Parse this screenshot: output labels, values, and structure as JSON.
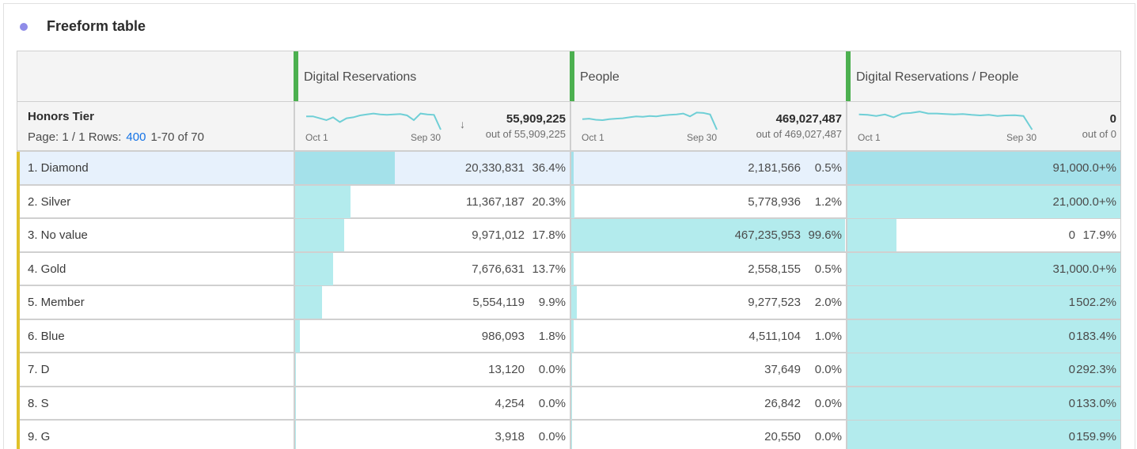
{
  "panel": {
    "title": "Freeform table",
    "accent_dot_color": "#8f8ce8"
  },
  "columns": [
    {
      "title": "Digital Reservations",
      "color": "#4cb050"
    },
    {
      "title": "People",
      "color": "#4cb050"
    },
    {
      "title": "Digital Reservations / People",
      "color": "#4cb050"
    }
  ],
  "dimension": {
    "title": "Honors Tier",
    "page_label": "Page: 1 / 1 Rows:",
    "rows_value": "400",
    "range_label": "1-70 of 70"
  },
  "summary": [
    {
      "spark_start": "Oct 1",
      "spark_end": "Sep 30",
      "total": "55,909,225",
      "out_of": "out of 55,909,225",
      "sort_icon": "sort-descending-icon",
      "sorted": true
    },
    {
      "spark_start": "Oct 1",
      "spark_end": "Sep 30",
      "total": "469,027,487",
      "out_of": "out of 469,027,487",
      "sorted": false
    },
    {
      "spark_start": "Oct 1",
      "spark_end": "Sep 30",
      "total": "0",
      "out_of": "out of 0",
      "sorted": false
    }
  ],
  "sparklines": [
    [
      0.7,
      0.7,
      0.6,
      0.5,
      0.65,
      0.4,
      0.6,
      0.65,
      0.75,
      0.8,
      0.85,
      0.8,
      0.78,
      0.8,
      0.82,
      0.75,
      0.5,
      0.85,
      0.8,
      0.78,
      0.0
    ],
    [
      0.55,
      0.58,
      0.52,
      0.5,
      0.55,
      0.58,
      0.6,
      0.65,
      0.7,
      0.68,
      0.72,
      0.7,
      0.75,
      0.78,
      0.8,
      0.85,
      0.7,
      0.9,
      0.88,
      0.8,
      0.0
    ],
    [
      0.8,
      0.78,
      0.72,
      0.8,
      0.65,
      0.85,
      0.88,
      0.95,
      0.85,
      0.85,
      0.82,
      0.8,
      0.82,
      0.78,
      0.75,
      0.78,
      0.72,
      0.75,
      0.76,
      0.72,
      0.0
    ]
  ],
  "rows": [
    {
      "label": "1.  Diamond",
      "selected": true,
      "c1": {
        "value": "20,330,831",
        "pct": "36.4%",
        "fill": 0.364
      },
      "c2": {
        "value": "2,181,566",
        "pct": "0.5%",
        "fill": 0.005
      },
      "c3": {
        "value": "9",
        "pct": "1,000.0+%",
        "fill": 1.0
      }
    },
    {
      "label": "2.  Silver",
      "selected": false,
      "c1": {
        "value": "11,367,187",
        "pct": "20.3%",
        "fill": 0.203
      },
      "c2": {
        "value": "5,778,936",
        "pct": "1.2%",
        "fill": 0.012
      },
      "c3": {
        "value": "2",
        "pct": "1,000.0+%",
        "fill": 1.0
      }
    },
    {
      "label": "3.  No value",
      "selected": false,
      "c1": {
        "value": "9,971,012",
        "pct": "17.8%",
        "fill": 0.178
      },
      "c2": {
        "value": "467,235,953",
        "pct": "99.6%",
        "fill": 0.996
      },
      "c3": {
        "value": "0",
        "pct": "17.9%",
        "fill": 0.179
      }
    },
    {
      "label": "4.  Gold",
      "selected": false,
      "c1": {
        "value": "7,676,631",
        "pct": "13.7%",
        "fill": 0.137
      },
      "c2": {
        "value": "2,558,155",
        "pct": "0.5%",
        "fill": 0.005
      },
      "c3": {
        "value": "3",
        "pct": "1,000.0+%",
        "fill": 1.0
      }
    },
    {
      "label": "5.  Member",
      "selected": false,
      "c1": {
        "value": "5,554,119",
        "pct": "9.9%",
        "fill": 0.099
      },
      "c2": {
        "value": "9,277,523",
        "pct": "2.0%",
        "fill": 0.02
      },
      "c3": {
        "value": "1",
        "pct": "502.2%",
        "fill": 1.0
      }
    },
    {
      "label": "6.  Blue",
      "selected": false,
      "c1": {
        "value": "986,093",
        "pct": "1.8%",
        "fill": 0.018
      },
      "c2": {
        "value": "4,511,104",
        "pct": "1.0%",
        "fill": 0.01
      },
      "c3": {
        "value": "0",
        "pct": "183.4%",
        "fill": 1.0
      }
    },
    {
      "label": "7.  D",
      "selected": false,
      "c1": {
        "value": "13,120",
        "pct": "0.0%",
        "fill": 0.0
      },
      "c2": {
        "value": "37,649",
        "pct": "0.0%",
        "fill": 0.0
      },
      "c3": {
        "value": "0",
        "pct": "292.3%",
        "fill": 1.0
      }
    },
    {
      "label": "8.  S",
      "selected": false,
      "c1": {
        "value": "4,254",
        "pct": "0.0%",
        "fill": 0.0
      },
      "c2": {
        "value": "26,842",
        "pct": "0.0%",
        "fill": 0.0
      },
      "c3": {
        "value": "0",
        "pct": "133.0%",
        "fill": 1.0
      }
    },
    {
      "label": "9.  G",
      "selected": false,
      "c1": {
        "value": "3,918",
        "pct": "0.0%",
        "fill": 0.0
      },
      "c2": {
        "value": "20,550",
        "pct": "0.0%",
        "fill": 0.0
      },
      "c3": {
        "value": "0",
        "pct": "159.9%",
        "fill": 1.0
      }
    }
  ],
  "colors": {
    "bar": "#b3ebed",
    "bar_selected": "#a4e1ea",
    "selected_row_bg": "#e7f1fc",
    "row_marker": "#e0c12a",
    "sparkline": "#6fcfd6",
    "link": "#1473e6"
  }
}
